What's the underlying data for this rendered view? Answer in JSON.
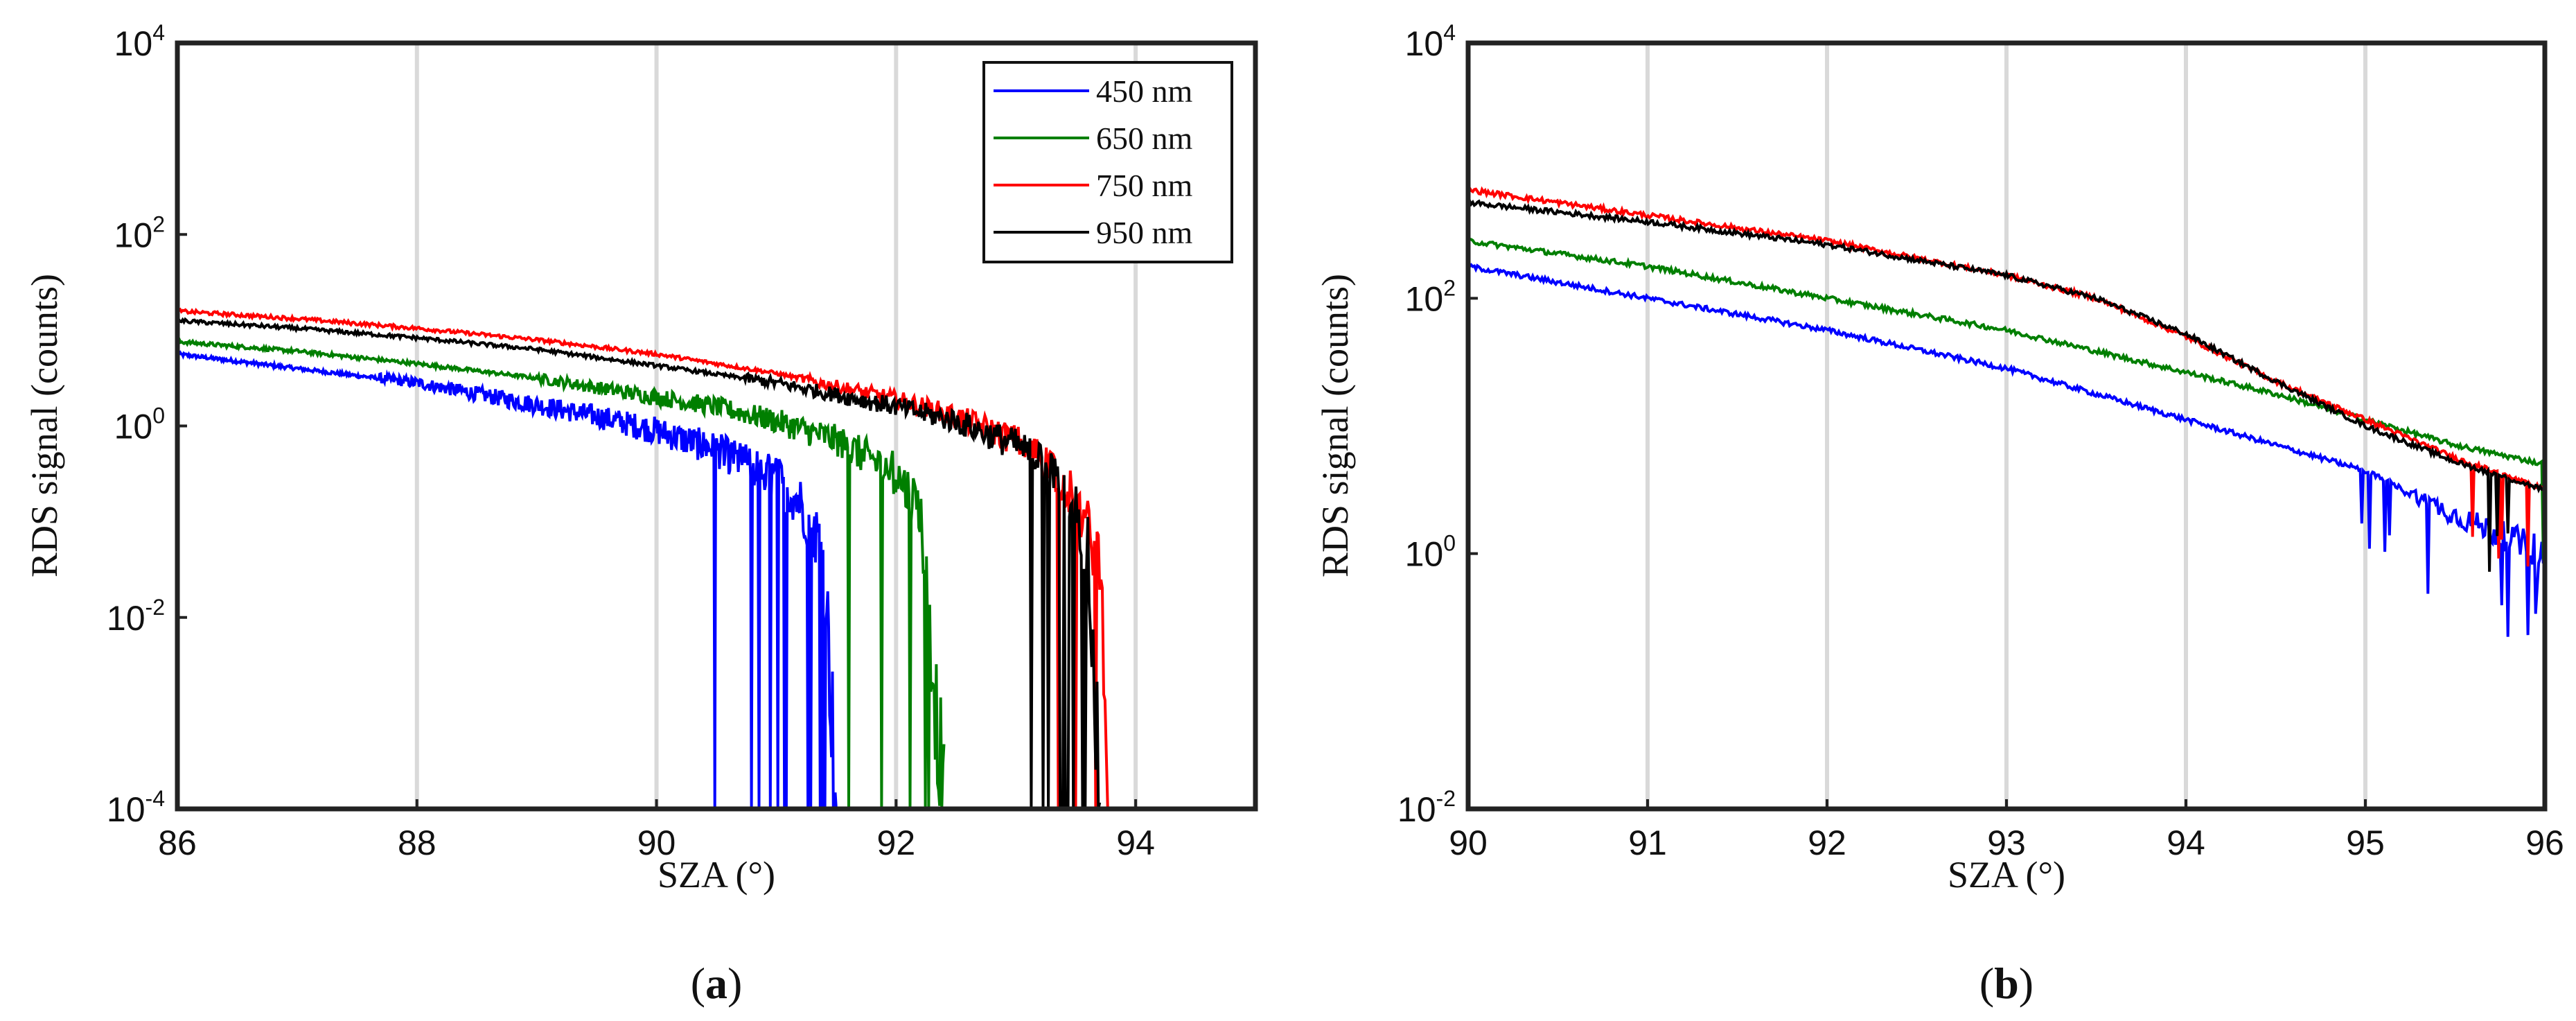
{
  "figure": {
    "panels": [
      "a",
      "b"
    ],
    "caption_open": "(",
    "caption_close": ")"
  },
  "chart_data": [
    {
      "type": "line",
      "panel": "a",
      "title": "",
      "xlabel": "SZA (°)",
      "ylabel": "RDS signal (counts)",
      "xlim": [
        86,
        95
      ],
      "ylim_log10": [
        -4,
        4
      ],
      "y_scale": "log",
      "grid": "vertical",
      "xticks": [
        86,
        88,
        90,
        92,
        94
      ],
      "yticks_exp": [
        -4,
        -2,
        0,
        2,
        4
      ],
      "legend_position": "top-right",
      "series": [
        {
          "name": "450 nm",
          "color": "#0000ff",
          "x": [
            86,
            87,
            88,
            89,
            89.5,
            90,
            90.5,
            91,
            91.2,
            91.4,
            91.5
          ],
          "log10_y": [
            0.75,
            0.6,
            0.45,
            0.22,
            0.1,
            -0.05,
            -0.25,
            -0.55,
            -0.8,
            -1.3,
            -4
          ]
        },
        {
          "name": "650 nm",
          "color": "#007f00",
          "x": [
            86,
            87,
            88,
            89,
            90,
            90.5,
            91,
            91.5,
            92,
            92.2,
            92.4
          ],
          "log10_y": [
            0.88,
            0.78,
            0.65,
            0.5,
            0.3,
            0.2,
            0.05,
            -0.15,
            -0.5,
            -0.85,
            -4
          ]
        },
        {
          "name": "750 nm",
          "color": "#ff0000",
          "x": [
            86,
            87,
            88,
            89,
            90,
            91,
            92,
            92.5,
            93,
            93.3,
            93.5,
            93.7,
            93.8
          ],
          "log10_y": [
            1.2,
            1.12,
            1.02,
            0.9,
            0.75,
            0.55,
            0.28,
            0.1,
            -0.15,
            -0.4,
            -0.8,
            -1.4,
            -4
          ]
        },
        {
          "name": "950 nm",
          "color": "#000000",
          "x": [
            86,
            87,
            88,
            89,
            90,
            91,
            92,
            92.5,
            93,
            93.3,
            93.5,
            93.6,
            93.7
          ],
          "log10_y": [
            1.1,
            1.02,
            0.92,
            0.8,
            0.63,
            0.45,
            0.2,
            0.05,
            -0.2,
            -0.45,
            -0.85,
            -1.3,
            -4
          ]
        }
      ]
    },
    {
      "type": "line",
      "panel": "b",
      "title": "",
      "xlabel": "SZA (°)",
      "ylabel": "RDS signal (counts)",
      "xlim": [
        90,
        96
      ],
      "ylim_log10": [
        -2,
        4
      ],
      "y_scale": "log",
      "grid": "vertical",
      "xticks": [
        90,
        91,
        92,
        93,
        94,
        95,
        96
      ],
      "yticks_exp": [
        -2,
        0,
        2,
        4
      ],
      "series": [
        {
          "name": "450 nm",
          "color": "#0000ff",
          "x": [
            90,
            91,
            92,
            93,
            94,
            94.5,
            95,
            95.5,
            96
          ],
          "log10_y": [
            2.25,
            2.0,
            1.75,
            1.45,
            1.05,
            0.85,
            0.65,
            0.3,
            0.0
          ]
        },
        {
          "name": "650 nm",
          "color": "#007f00",
          "x": [
            90,
            91,
            92,
            93,
            94,
            94.5,
            95,
            95.5,
            96
          ],
          "log10_y": [
            2.45,
            2.25,
            2.0,
            1.75,
            1.42,
            1.25,
            1.05,
            0.85,
            0.7
          ]
        },
        {
          "name": "750 nm",
          "color": "#ff0000",
          "x": [
            90,
            91,
            92,
            93,
            93.5,
            94,
            94.5,
            95,
            95.5,
            96
          ],
          "log10_y": [
            2.85,
            2.65,
            2.45,
            2.18,
            2.0,
            1.7,
            1.35,
            1.05,
            0.75,
            0.5
          ]
        },
        {
          "name": "950 nm",
          "color": "#000000",
          "x": [
            90,
            91,
            92,
            93,
            93.5,
            94,
            94.5,
            95,
            95.5,
            96
          ],
          "log10_y": [
            2.75,
            2.6,
            2.42,
            2.18,
            2.0,
            1.72,
            1.35,
            1.0,
            0.72,
            0.5
          ]
        }
      ]
    }
  ]
}
